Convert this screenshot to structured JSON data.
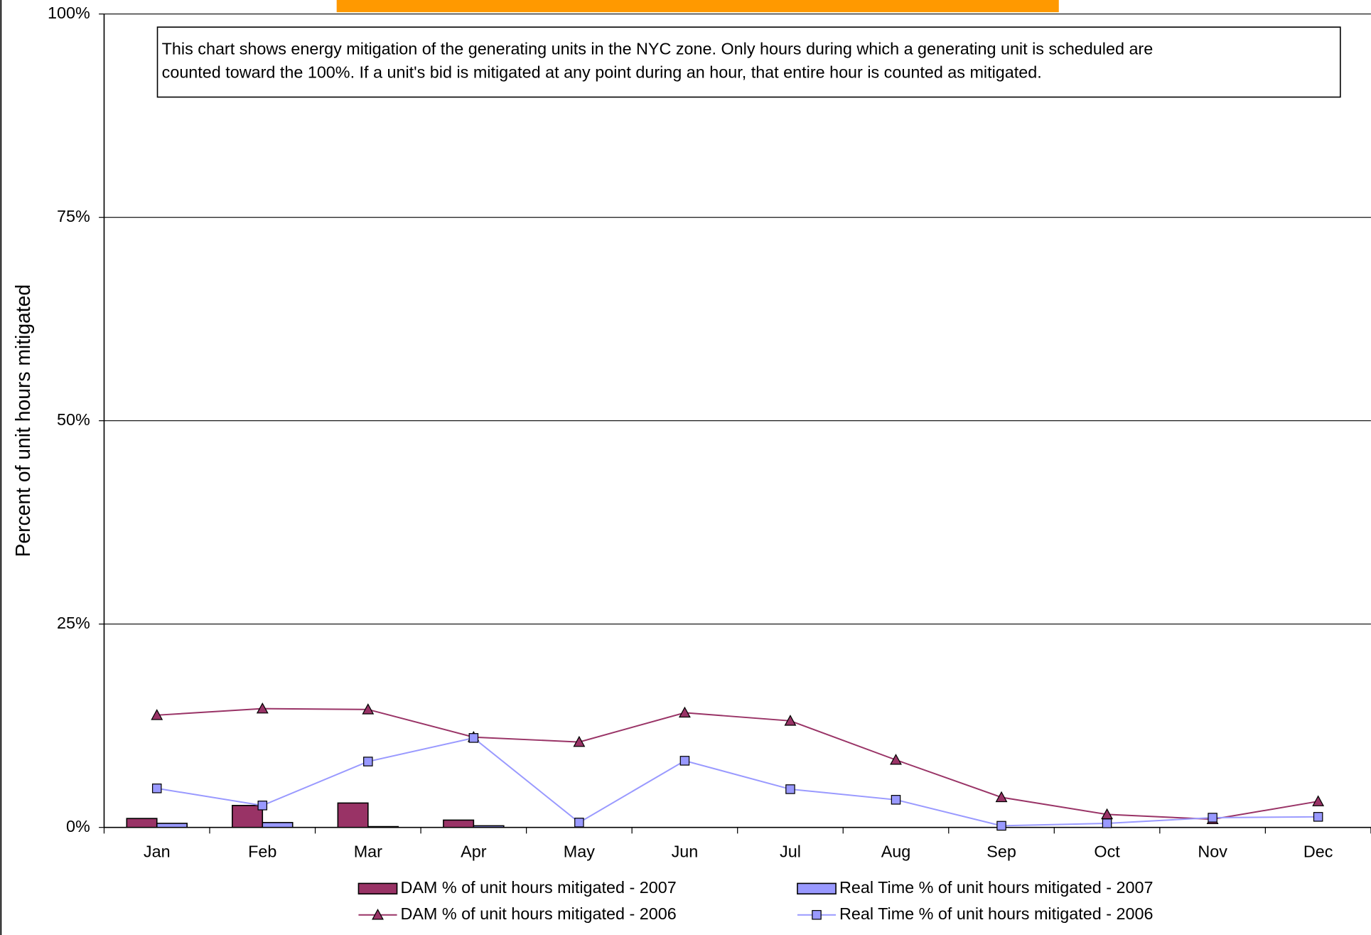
{
  "chart_data": {
    "type": "bar",
    "y_label": "Percent of unit hours mitigated",
    "note": [
      "This chart shows energy mitigation of the generating units in the NYC zone.  Only hours during which a generating unit is scheduled are",
      "counted toward the 100%. If a unit's bid is mitigated at any point during an hour, that entire hour is counted as mitigated."
    ],
    "categories": [
      "Jan",
      "Feb",
      "Mar",
      "Apr",
      "May",
      "Jun",
      "Jul",
      "Aug",
      "Sep",
      "Oct",
      "Nov",
      "Dec"
    ],
    "series": [
      {
        "name": "DAM % of unit hours mitigated - 2007",
        "type": "bar",
        "color": "#993366",
        "values": [
          1.1,
          2.7,
          3.0,
          0.9,
          null,
          null,
          null,
          null,
          null,
          null,
          null,
          null
        ]
      },
      {
        "name": "Real Time % of unit hours mitigated - 2007",
        "type": "bar",
        "color": "#9999ff",
        "values": [
          0.5,
          0.6,
          0.1,
          0.2,
          null,
          null,
          null,
          null,
          null,
          null,
          null,
          null
        ]
      },
      {
        "name": "DAM % of unit hours mitigated - 2006",
        "type": "line",
        "marker": "triangle",
        "color": "#993366",
        "values": [
          13.8,
          14.6,
          14.5,
          11.1,
          10.5,
          14.1,
          13.1,
          8.3,
          3.7,
          1.6,
          1.0,
          3.2
        ]
      },
      {
        "name": "Real Time % of unit hours mitigated - 2006",
        "type": "line",
        "marker": "square",
        "color": "#9999ff",
        "values": [
          4.8,
          2.7,
          8.1,
          11.0,
          0.6,
          8.2,
          4.7,
          3.4,
          0.2,
          0.5,
          1.2,
          1.3
        ]
      }
    ],
    "ylim": [
      0,
      100
    ],
    "yticks": [
      {
        "value": 0,
        "label": "0%"
      },
      {
        "value": 25,
        "label": "25%"
      },
      {
        "value": 50,
        "label": "50%"
      },
      {
        "value": 75,
        "label": "75%"
      },
      {
        "value": 100,
        "label": "100%"
      }
    ],
    "grid": true
  }
}
